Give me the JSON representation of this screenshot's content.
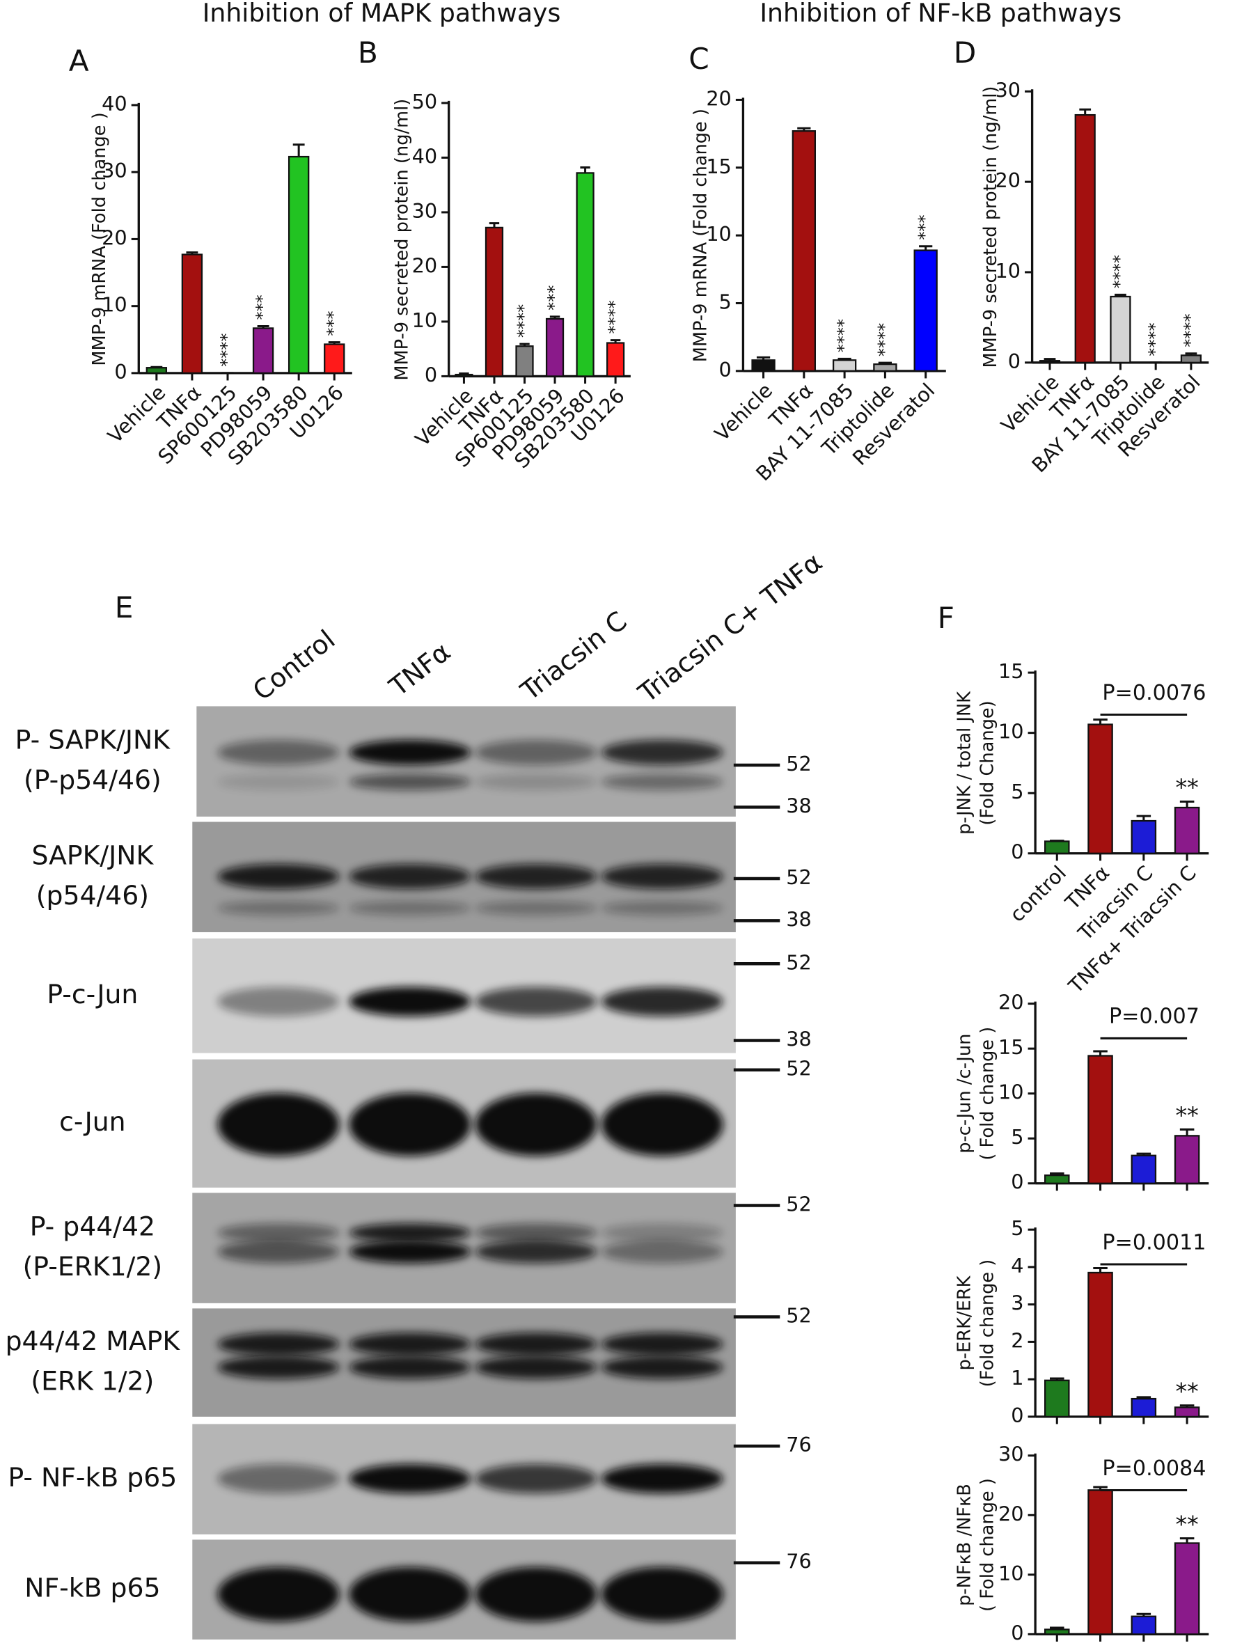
{
  "headings": [
    "Inhibition of MAPK pathways",
    "Inhibition of NF-kB pathways"
  ],
  "chart_data": [
    {
      "type": "bar",
      "panel": "A",
      "ylabel": [
        "MMP-9 mRNA (Fold change )"
      ],
      "categories": [
        "Vehicle",
        "TNFα",
        "SP600125",
        "PD98059",
        "SB203580",
        "U0126"
      ],
      "values": [
        0.8,
        17.7,
        0,
        6.7,
        32.3,
        4.3
      ],
      "errors": [
        0.1,
        0.3,
        0,
        0.3,
        1.8,
        0.3
      ],
      "colors": [
        "#1e7a1e",
        "#a3100f",
        "#808080",
        "#8a1a8a",
        "#22c322",
        "#ff1a1a"
      ],
      "significance": [
        null,
        null,
        "****",
        "***",
        null,
        "***"
      ],
      "ylim": [
        0,
        40
      ],
      "yticks": [
        0,
        10,
        20,
        30,
        40
      ]
    },
    {
      "type": "bar",
      "panel": "B",
      "ylabel": [
        "MMP-9  secreted protein (ng/ml)"
      ],
      "categories": [
        "Vehicle",
        "TNFα",
        "SP600125",
        "PD98059",
        "SB203580",
        "U0126"
      ],
      "values": [
        0.3,
        27.2,
        5.5,
        10.5,
        37.2,
        6.1
      ],
      "errors": [
        0.2,
        0.8,
        0.4,
        0.4,
        1.0,
        0.5
      ],
      "colors": [
        "#1e7a1e",
        "#a3100f",
        "#808080",
        "#8a1a8a",
        "#22c322",
        "#ff1a1a"
      ],
      "significance": [
        null,
        null,
        "****",
        "***",
        null,
        "****"
      ],
      "ylim": [
        0,
        50
      ],
      "yticks": [
        0,
        10,
        20,
        30,
        40,
        50
      ]
    },
    {
      "type": "bar",
      "panel": "C",
      "ylabel": [
        "MMP-9 mRNA (Fold change )"
      ],
      "categories": [
        "Vehicle",
        "TNFα",
        "BAY 11-7085",
        "Triptolide",
        "Resveratol"
      ],
      "values": [
        0.8,
        17.7,
        0.8,
        0.5,
        8.9
      ],
      "errors": [
        0.2,
        0.2,
        0.1,
        0.1,
        0.3
      ],
      "colors": [
        "#111111",
        "#a3100f",
        "#d4d4d4",
        "#a6a6a6",
        "#0000ff"
      ],
      "significance": [
        null,
        null,
        "****",
        "****",
        "***"
      ],
      "ylim": [
        0,
        20
      ],
      "yticks": [
        0,
        5,
        10,
        15,
        20
      ]
    },
    {
      "type": "bar",
      "panel": "D",
      "ylabel": [
        "MMP-9  secreted protein (ng/ml)"
      ],
      "categories": [
        "Vehicle",
        "TNFα",
        "BAY 11-7085",
        "Triptolide",
        "Resveratol"
      ],
      "values": [
        0.2,
        27.4,
        7.3,
        0,
        0.8
      ],
      "errors": [
        0.2,
        0.6,
        0.2,
        0,
        0.2
      ],
      "colors": [
        "#111111",
        "#a3100f",
        "#d4d4d4",
        "#a6a6a6",
        "#808080"
      ],
      "significance": [
        null,
        null,
        "****",
        "****",
        "****"
      ],
      "ylim": [
        0,
        30
      ],
      "yticks": [
        0,
        10,
        20,
        30
      ]
    },
    {
      "type": "bar",
      "panel": "F",
      "ylabel": [
        "p-JNK / total JNK",
        "(Fold Change)"
      ],
      "categories": [
        "control",
        "TNFα",
        "Triacsin C",
        "TNFα+ Triacsin C"
      ],
      "values": [
        1.0,
        10.7,
        2.7,
        3.8
      ],
      "errors": [
        0.05,
        0.4,
        0.4,
        0.5
      ],
      "colors": [
        "#1e7a1e",
        "#a3100f",
        "#1c1cd6",
        "#8a1a8a"
      ],
      "significance": [
        null,
        null,
        null,
        "**"
      ],
      "p_value": "P=0.0076",
      "ylim": [
        0,
        15
      ],
      "yticks": [
        0,
        5,
        10,
        15
      ]
    },
    {
      "type": "bar",
      "ylabel": [
        "p-c-Jun /c-Jun",
        "( Fold change )"
      ],
      "categories": [
        null,
        null,
        null,
        null
      ],
      "values": [
        0.9,
        14.2,
        3.1,
        5.3
      ],
      "errors": [
        0.2,
        0.5,
        0.2,
        0.7
      ],
      "colors": [
        "#1e7a1e",
        "#a3100f",
        "#1c1cd6",
        "#8a1a8a"
      ],
      "significance": [
        null,
        null,
        null,
        "**"
      ],
      "p_value": "P=0.007",
      "ylim": [
        0,
        20
      ],
      "yticks": [
        0,
        5,
        10,
        15,
        20
      ]
    },
    {
      "type": "bar",
      "ylabel": [
        "p-ERK/ERK",
        "(Fold change )"
      ],
      "categories": [
        null,
        null,
        null,
        null
      ],
      "values": [
        0.97,
        3.85,
        0.48,
        0.25
      ],
      "errors": [
        0.05,
        0.12,
        0.04,
        0.05
      ],
      "colors": [
        "#1e7a1e",
        "#a3100f",
        "#1c1cd6",
        "#8a1a8a"
      ],
      "significance": [
        null,
        null,
        null,
        "**"
      ],
      "p_value": "P=0.0011",
      "ylim": [
        0,
        5
      ],
      "yticks": [
        0,
        1,
        2,
        3,
        4,
        5
      ]
    },
    {
      "type": "bar",
      "ylabel": [
        "p-NFκB /NFκB",
        "( Fold change )"
      ],
      "categories": [
        null,
        null,
        null,
        null
      ],
      "values": [
        0.8,
        24.2,
        3.0,
        15.3
      ],
      "errors": [
        0.3,
        0.5,
        0.4,
        0.8
      ],
      "colors": [
        "#1e7a1e",
        "#a3100f",
        "#1c1cd6",
        "#8a1a8a"
      ],
      "significance": [
        null,
        null,
        null,
        "**"
      ],
      "p_value": "P=0.0084",
      "ylim": [
        0,
        30
      ],
      "yticks": [
        0,
        10,
        20,
        30
      ]
    }
  ],
  "blot": {
    "panel": "E",
    "lanes": [
      "Control",
      "TNFα",
      "Triacsin C",
      "Triacsin C+ TNFα"
    ],
    "rows": [
      {
        "label": [
          "P- SAPK/JNK",
          "(P-p54/46)"
        ],
        "markers": [
          52,
          38
        ]
      },
      {
        "label": [
          "SAPK/JNK",
          "(p54/46)"
        ],
        "markers": [
          52,
          38
        ]
      },
      {
        "label": [
          "P-c-Jun"
        ],
        "markers": [
          52,
          38
        ]
      },
      {
        "label": [
          "c-Jun"
        ],
        "markers": [
          52
        ]
      },
      {
        "label": [
          "P- p44/42",
          "(P-ERK1/2)"
        ],
        "markers": [
          52
        ]
      },
      {
        "label": [
          "p44/42 MAPK",
          "(ERK 1/2)"
        ],
        "markers": [
          52
        ]
      },
      {
        "label": [
          "P- NF-kB p65"
        ],
        "markers": [
          76
        ]
      },
      {
        "label": [
          "NF-kB p65"
        ],
        "markers": [
          76
        ]
      }
    ]
  }
}
